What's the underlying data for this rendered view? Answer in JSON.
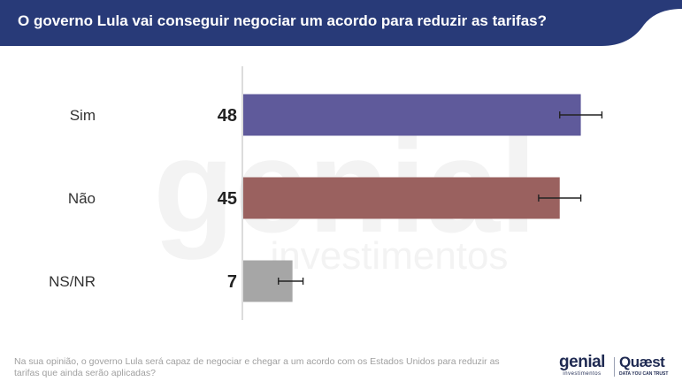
{
  "header": {
    "title": "O governo Lula vai conseguir negociar um acordo para reduzir as tarifas?",
    "background_color": "#283a78"
  },
  "chart_data": {
    "type": "bar",
    "orientation": "horizontal",
    "title": "O governo Lula vai conseguir negociar um acordo para reduzir as tarifas?",
    "xlabel": "",
    "ylabel": "",
    "xlim": [
      0,
      50
    ],
    "grid": false,
    "legend": "none",
    "categories": [
      "Sim",
      "Não",
      "NS/NR"
    ],
    "values": [
      48,
      45,
      7
    ],
    "error_bars": [
      {
        "low": 45,
        "high": 51
      },
      {
        "low": 42,
        "high": 48
      },
      {
        "low": 5,
        "high": 8.5
      }
    ],
    "colors": [
      "#5f5a9b",
      "#9a615f",
      "#a6a6a6"
    ],
    "data_labels": [
      "48",
      "45",
      "7"
    ]
  },
  "footnote": "Na sua opinião, o governo Lula será capaz de negociar e chegar a um acordo com os Estados Unidos para reduzir as tarifas que ainda serão aplicadas?",
  "watermark": {
    "word": "genial",
    "sub": "investimentos"
  },
  "logos": {
    "genial": {
      "word": "genial",
      "sub": "investimentos"
    },
    "quaest": {
      "word": "Quæst",
      "sub": "DATA YOU CAN TRUST"
    }
  }
}
